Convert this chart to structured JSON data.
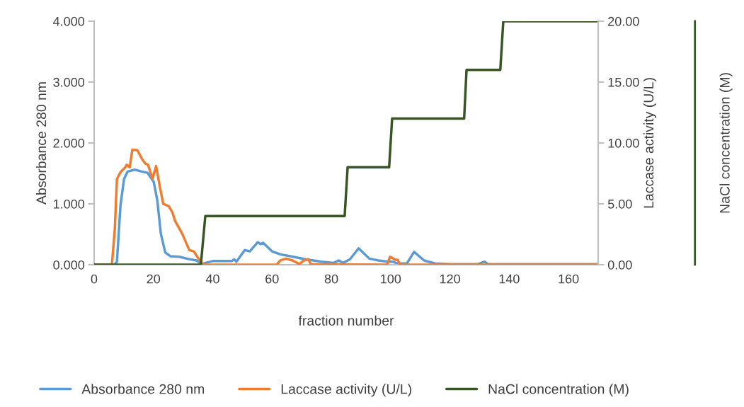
{
  "chart_data": {
    "type": "line",
    "xlabel": "fraction number",
    "ylabel": "Absorbance 280 nm",
    "y2label": "Laccase activity (U/L)",
    "y3label": "NaCl concentration (M)",
    "xlim": [
      0,
      170
    ],
    "xticks": [
      0,
      20,
      40,
      60,
      80,
      100,
      120,
      140,
      160
    ],
    "ylim": [
      0,
      4
    ],
    "yticks": [
      {
        "value": 0,
        "label": "0.000"
      },
      {
        "value": 1,
        "label": "1.000"
      },
      {
        "value": 2,
        "label": "2.000"
      },
      {
        "value": 3,
        "label": "3.000"
      },
      {
        "value": 4,
        "label": "4.000"
      }
    ],
    "y2lim": [
      0,
      20
    ],
    "y2ticks": [
      {
        "value": 0,
        "label": "0.00"
      },
      {
        "value": 5,
        "label": "5.00"
      },
      {
        "value": 10,
        "label": "10.00"
      },
      {
        "value": 15,
        "label": "15.00"
      },
      {
        "value": 20,
        "label": "20.00"
      }
    ],
    "grid": false,
    "legend": "bottom",
    "marker": "none",
    "line_style": "solid",
    "series": [
      {
        "name": "Absorbance 280 nm",
        "color": "#5b9bd5",
        "x": [
          0,
          6.9,
          7.7,
          8.9,
          10.1,
          11.3,
          13.7,
          16.1,
          18,
          20.1,
          21.3,
          22.5,
          24,
          25.7,
          28.8,
          31.2,
          34.5,
          36.5,
          37.6,
          40,
          46.5,
          47.2,
          48,
          50.8,
          52.5,
          55.2,
          56.1,
          57,
          60,
          62.8,
          67.1,
          71.2,
          76.7,
          80.8,
          82.5,
          84,
          86.3,
          89.2,
          92.8,
          95.9,
          99.3,
          100.7,
          102.4,
          105.5,
          107.9,
          111.3,
          115,
          120,
          129.5,
          131.7,
          132.8,
          170
        ],
        "values": [
          0,
          0,
          0.05,
          0.98,
          1.41,
          1.53,
          1.56,
          1.53,
          1.51,
          1.36,
          1.06,
          0.51,
          0.2,
          0.14,
          0.13,
          0.1,
          0.07,
          0.01,
          0.03,
          0.06,
          0.06,
          0.09,
          0.05,
          0.24,
          0.22,
          0.37,
          0.34,
          0.36,
          0.22,
          0.17,
          0.13,
          0.09,
          0.05,
          0.03,
          0.07,
          0.03,
          0.09,
          0.27,
          0.1,
          0.07,
          0.05,
          0.05,
          0.02,
          0.02,
          0.21,
          0.07,
          0.02,
          0.01,
          0.01,
          0.05,
          0.01,
          0.01
        ]
      },
      {
        "name": "Laccase activity (U/L)",
        "color": "#ed7d31",
        "axis": "y2",
        "x": [
          0,
          6,
          7,
          7.7,
          8.9,
          10.5,
          11,
          12,
          12.9,
          14.6,
          16.1,
          17.3,
          18.2,
          19.7,
          20.9,
          22.1,
          23.3,
          25.2,
          26.4,
          27.3,
          29.7,
          32.1,
          33.6,
          36,
          36.9,
          61.6,
          62.8,
          64.7,
          66.9,
          69.3,
          70.7,
          72.2,
          73.1,
          98.8,
          99.8,
          101.7,
          102.4,
          103.1,
          170
        ],
        "values": [
          0,
          0,
          3.0,
          7.05,
          7.6,
          8.0,
          8.2,
          8.0,
          9.45,
          9.4,
          8.7,
          8.3,
          8.2,
          7.05,
          8.1,
          6.5,
          5.0,
          4.8,
          4.3,
          3.6,
          2.55,
          1.2,
          1.1,
          0.2,
          0,
          0,
          0.35,
          0.5,
          0.35,
          0.05,
          0.35,
          0.45,
          0.05,
          0,
          0.65,
          0.4,
          0.4,
          0,
          0
        ]
      },
      {
        "name": "NaCl concentration (M)",
        "color": "#375623",
        "axis": "y2",
        "x": [
          0,
          36,
          37.5,
          84.5,
          85.5,
          99.5,
          100.5,
          124.8,
          125.6,
          137,
          138,
          170
        ],
        "values": [
          0,
          0,
          4,
          4,
          8,
          8,
          12,
          12,
          16,
          16,
          20,
          20
        ]
      }
    ]
  }
}
